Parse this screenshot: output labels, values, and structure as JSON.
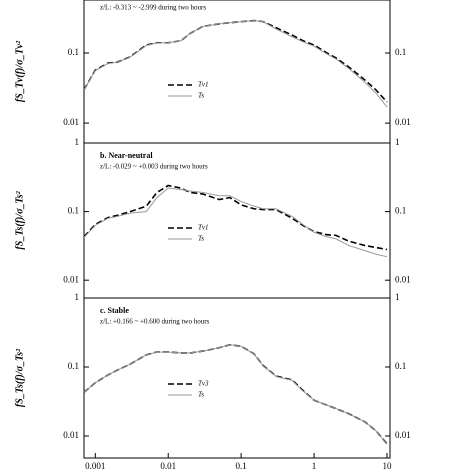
{
  "chart_data": [
    {
      "type": "line",
      "annotation": "z/L: -0.313 ~ -2.999 during two hours",
      "y_label": "fS_Tv(f)/σ_Tv²",
      "log_x": true,
      "log_y": true,
      "xlim": [
        0.0007,
        11
      ],
      "ylim": [
        0.0052,
        0.57
      ],
      "yticks": [
        0.01,
        0.1
      ],
      "x": [
        0.0007,
        0.001,
        0.0015,
        0.002,
        0.003,
        0.005,
        0.007,
        0.01,
        0.015,
        0.02,
        0.03,
        0.05,
        0.07,
        0.1,
        0.15,
        0.2,
        0.3,
        0.5,
        0.7,
        1,
        1.5,
        2,
        3,
        5,
        7,
        10
      ],
      "series": [
        {
          "name": "Tv1",
          "color": "#000000",
          "style": "dashed",
          "values": [
            0.03,
            0.057,
            0.072,
            0.074,
            0.088,
            0.13,
            0.14,
            0.14,
            0.15,
            0.19,
            0.24,
            0.26,
            0.27,
            0.28,
            0.29,
            0.28,
            0.23,
            0.18,
            0.15,
            0.13,
            0.1,
            0.085,
            0.063,
            0.041,
            0.03,
            0.02
          ]
        },
        {
          "name": "Ts",
          "color": "#999999",
          "style": "solid",
          "values": [
            0.03,
            0.056,
            0.071,
            0.074,
            0.087,
            0.128,
            0.139,
            0.14,
            0.15,
            0.19,
            0.24,
            0.26,
            0.27,
            0.28,
            0.29,
            0.28,
            0.22,
            0.17,
            0.145,
            0.125,
            0.097,
            0.082,
            0.06,
            0.038,
            0.027,
            0.017
          ]
        }
      ]
    },
    {
      "type": "line",
      "panel_label": "b. Near-neutral",
      "annotation": "z/L: -0.029 ~ +0.003 during two hours",
      "y_label": "fS_Ts(f)/σ_Ts²",
      "log_x": true,
      "log_y": true,
      "xlim": [
        0.0007,
        11
      ],
      "ylim": [
        0.0055,
        1
      ],
      "yticks": [
        0.01,
        0.1,
        1
      ],
      "x": [
        0.0007,
        0.001,
        0.0015,
        0.002,
        0.003,
        0.005,
        0.007,
        0.01,
        0.015,
        0.02,
        0.03,
        0.05,
        0.07,
        0.1,
        0.15,
        0.2,
        0.3,
        0.5,
        0.7,
        1,
        1.5,
        2,
        3,
        5,
        7,
        10
      ],
      "series": [
        {
          "name": "Tv1",
          "color": "#000000",
          "style": "dashed",
          "values": [
            0.043,
            0.065,
            0.082,
            0.088,
            0.1,
            0.12,
            0.19,
            0.24,
            0.22,
            0.19,
            0.18,
            0.15,
            0.16,
            0.125,
            0.11,
            0.107,
            0.107,
            0.08,
            0.063,
            0.051,
            0.046,
            0.045,
            0.037,
            0.032,
            0.03,
            0.028
          ]
        },
        {
          "name": "Ts",
          "color": "#999999",
          "style": "solid",
          "values": [
            0.042,
            0.063,
            0.08,
            0.085,
            0.095,
            0.1,
            0.16,
            0.22,
            0.21,
            0.2,
            0.19,
            0.17,
            0.17,
            0.14,
            0.12,
            0.11,
            0.11,
            0.085,
            0.065,
            0.05,
            0.043,
            0.04,
            0.032,
            0.027,
            0.024,
            0.022
          ]
        }
      ]
    },
    {
      "type": "line",
      "panel_label": "c. Stable",
      "annotation": "z/L: +0.166 ~ +0.600 during two hours",
      "y_label": "fS_Ts(f)/σ_Ts²",
      "log_x": true,
      "log_y": true,
      "xlim": [
        0.0007,
        11
      ],
      "ylim": [
        0.0048,
        1
      ],
      "yticks": [
        0.01,
        0.1,
        1
      ],
      "xticks": [
        0.001,
        0.01,
        0.1,
        1,
        10
      ],
      "x": [
        0.0007,
        0.001,
        0.0015,
        0.002,
        0.003,
        0.005,
        0.007,
        0.01,
        0.015,
        0.02,
        0.03,
        0.05,
        0.07,
        0.1,
        0.15,
        0.2,
        0.3,
        0.5,
        0.7,
        1,
        1.5,
        2,
        3,
        5,
        7,
        10
      ],
      "series": [
        {
          "name": "Tv3",
          "color": "#000000",
          "style": "dashed",
          "values": [
            0.043,
            0.059,
            0.077,
            0.09,
            0.11,
            0.15,
            0.165,
            0.165,
            0.16,
            0.16,
            0.17,
            0.19,
            0.21,
            0.2,
            0.155,
            0.105,
            0.074,
            0.065,
            0.046,
            0.033,
            0.028,
            0.025,
            0.021,
            0.016,
            0.012,
            0.0077
          ]
        },
        {
          "name": "Ts",
          "color": "#999999",
          "style": "solid",
          "values": [
            0.043,
            0.059,
            0.077,
            0.09,
            0.11,
            0.15,
            0.164,
            0.164,
            0.16,
            0.16,
            0.17,
            0.19,
            0.21,
            0.2,
            0.154,
            0.104,
            0.073,
            0.064,
            0.045,
            0.033,
            0.028,
            0.025,
            0.021,
            0.016,
            0.012,
            0.0076
          ]
        }
      ]
    }
  ]
}
